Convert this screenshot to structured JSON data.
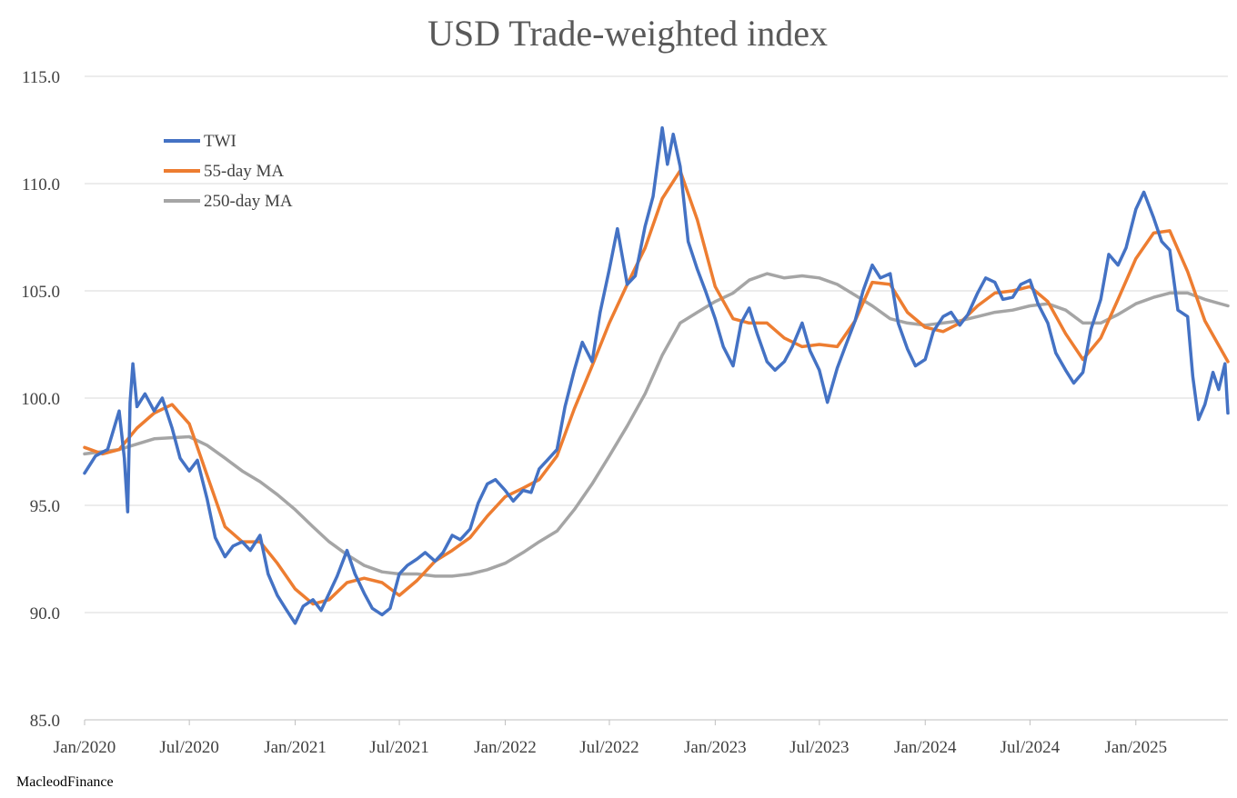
{
  "source_label": "MacleodFinance",
  "chart_data": {
    "type": "line",
    "title": "USD Trade-weighted index",
    "xlabel": "",
    "ylabel": "",
    "ylim": [
      85,
      115
    ],
    "y_ticks": [
      "85.0",
      "90.0",
      "95.0",
      "100.0",
      "105.0",
      "110.0",
      "115.0"
    ],
    "y_tick_values": [
      85,
      90,
      95,
      100,
      105,
      110,
      115
    ],
    "xlim": [
      "2020-01-01",
      "2025-06-10"
    ],
    "x_ticks": [
      "Jan/2020",
      "Jul/2020",
      "Jan/2021",
      "Jul/2021",
      "Jan/2022",
      "Jul/2022",
      "Jan/2023",
      "Jul/2023",
      "Jan/2024",
      "Jul/2024",
      "Jan/2025"
    ],
    "x_tick_dates": [
      "2020-01-01",
      "2020-07-01",
      "2021-01-01",
      "2021-07-01",
      "2022-01-01",
      "2022-07-01",
      "2023-01-01",
      "2023-07-01",
      "2024-01-01",
      "2024-07-01",
      "2025-01-01"
    ],
    "grid": "horizontal",
    "legend_position": "top-left",
    "series": [
      {
        "name": "TWI",
        "color": "#4472C4",
        "points": [
          [
            "2020-01-01",
            96.5
          ],
          [
            "2020-01-20",
            97.3
          ],
          [
            "2020-02-10",
            97.6
          ],
          [
            "2020-03-01",
            99.4
          ],
          [
            "2020-03-10",
            97.2
          ],
          [
            "2020-03-16",
            94.7
          ],
          [
            "2020-03-20",
            99.8
          ],
          [
            "2020-03-25",
            101.6
          ],
          [
            "2020-04-01",
            99.6
          ],
          [
            "2020-04-15",
            100.2
          ],
          [
            "2020-05-01",
            99.4
          ],
          [
            "2020-05-15",
            100.0
          ],
          [
            "2020-06-01",
            98.6
          ],
          [
            "2020-06-15",
            97.2
          ],
          [
            "2020-07-01",
            96.6
          ],
          [
            "2020-07-15",
            97.1
          ],
          [
            "2020-08-01",
            95.3
          ],
          [
            "2020-08-15",
            93.5
          ],
          [
            "2020-09-01",
            92.6
          ],
          [
            "2020-09-15",
            93.1
          ],
          [
            "2020-10-01",
            93.3
          ],
          [
            "2020-10-15",
            92.9
          ],
          [
            "2020-11-01",
            93.6
          ],
          [
            "2020-11-15",
            91.8
          ],
          [
            "2020-12-01",
            90.8
          ],
          [
            "2020-12-15",
            90.2
          ],
          [
            "2021-01-01",
            89.5
          ],
          [
            "2021-01-15",
            90.3
          ],
          [
            "2021-02-01",
            90.6
          ],
          [
            "2021-02-15",
            90.1
          ],
          [
            "2021-03-01",
            90.9
          ],
          [
            "2021-03-15",
            91.7
          ],
          [
            "2021-04-01",
            92.9
          ],
          [
            "2021-04-15",
            91.8
          ],
          [
            "2021-05-01",
            90.9
          ],
          [
            "2021-05-15",
            90.2
          ],
          [
            "2021-06-01",
            89.9
          ],
          [
            "2021-06-15",
            90.2
          ],
          [
            "2021-07-01",
            91.8
          ],
          [
            "2021-07-15",
            92.2
          ],
          [
            "2021-08-01",
            92.5
          ],
          [
            "2021-08-15",
            92.8
          ],
          [
            "2021-09-01",
            92.4
          ],
          [
            "2021-09-15",
            92.8
          ],
          [
            "2021-10-01",
            93.6
          ],
          [
            "2021-10-15",
            93.4
          ],
          [
            "2021-11-01",
            93.9
          ],
          [
            "2021-11-15",
            95.1
          ],
          [
            "2021-12-01",
            96.0
          ],
          [
            "2021-12-15",
            96.2
          ],
          [
            "2022-01-01",
            95.7
          ],
          [
            "2022-01-15",
            95.2
          ],
          [
            "2022-02-01",
            95.7
          ],
          [
            "2022-02-15",
            95.6
          ],
          [
            "2022-03-01",
            96.7
          ],
          [
            "2022-03-15",
            97.1
          ],
          [
            "2022-04-01",
            97.6
          ],
          [
            "2022-04-15",
            99.6
          ],
          [
            "2022-05-01",
            101.3
          ],
          [
            "2022-05-15",
            102.6
          ],
          [
            "2022-06-01",
            101.7
          ],
          [
            "2022-06-15",
            104.0
          ],
          [
            "2022-07-01",
            106.0
          ],
          [
            "2022-07-15",
            107.9
          ],
          [
            "2022-08-01",
            105.3
          ],
          [
            "2022-08-15",
            105.7
          ],
          [
            "2022-09-01",
            108.0
          ],
          [
            "2022-09-15",
            109.4
          ],
          [
            "2022-10-01",
            112.6
          ],
          [
            "2022-10-10",
            110.9
          ],
          [
            "2022-10-20",
            112.3
          ],
          [
            "2022-11-01",
            110.8
          ],
          [
            "2022-11-15",
            107.3
          ],
          [
            "2022-12-01",
            106.0
          ],
          [
            "2022-12-15",
            105.0
          ],
          [
            "2023-01-01",
            103.7
          ],
          [
            "2023-01-15",
            102.4
          ],
          [
            "2023-02-01",
            101.5
          ],
          [
            "2023-02-15",
            103.5
          ],
          [
            "2023-03-01",
            104.2
          ],
          [
            "2023-03-15",
            103.0
          ],
          [
            "2023-04-01",
            101.7
          ],
          [
            "2023-04-15",
            101.3
          ],
          [
            "2023-05-01",
            101.7
          ],
          [
            "2023-05-15",
            102.4
          ],
          [
            "2023-06-01",
            103.5
          ],
          [
            "2023-06-15",
            102.2
          ],
          [
            "2023-07-01",
            101.3
          ],
          [
            "2023-07-15",
            99.8
          ],
          [
            "2023-08-01",
            101.4
          ],
          [
            "2023-08-15",
            102.4
          ],
          [
            "2023-09-01",
            103.6
          ],
          [
            "2023-09-15",
            105.0
          ],
          [
            "2023-10-01",
            106.2
          ],
          [
            "2023-10-15",
            105.6
          ],
          [
            "2023-11-01",
            105.8
          ],
          [
            "2023-11-15",
            103.5
          ],
          [
            "2023-12-01",
            102.3
          ],
          [
            "2023-12-15",
            101.5
          ],
          [
            "2024-01-01",
            101.8
          ],
          [
            "2024-01-15",
            103.1
          ],
          [
            "2024-02-01",
            103.8
          ],
          [
            "2024-02-15",
            104.0
          ],
          [
            "2024-03-01",
            103.4
          ],
          [
            "2024-03-15",
            103.9
          ],
          [
            "2024-04-01",
            104.9
          ],
          [
            "2024-04-15",
            105.6
          ],
          [
            "2024-05-01",
            105.4
          ],
          [
            "2024-05-15",
            104.6
          ],
          [
            "2024-06-01",
            104.7
          ],
          [
            "2024-06-15",
            105.3
          ],
          [
            "2024-07-01",
            105.5
          ],
          [
            "2024-07-15",
            104.4
          ],
          [
            "2024-08-01",
            103.5
          ],
          [
            "2024-08-15",
            102.1
          ],
          [
            "2024-09-01",
            101.3
          ],
          [
            "2024-09-15",
            100.7
          ],
          [
            "2024-10-01",
            101.2
          ],
          [
            "2024-10-15",
            103.2
          ],
          [
            "2024-11-01",
            104.6
          ],
          [
            "2024-11-15",
            106.7
          ],
          [
            "2024-12-01",
            106.2
          ],
          [
            "2024-12-15",
            107.0
          ],
          [
            "2025-01-01",
            108.8
          ],
          [
            "2025-01-15",
            109.6
          ],
          [
            "2025-02-01",
            108.4
          ],
          [
            "2025-02-15",
            107.3
          ],
          [
            "2025-03-01",
            106.9
          ],
          [
            "2025-03-15",
            104.1
          ],
          [
            "2025-04-01",
            103.8
          ],
          [
            "2025-04-10",
            101.0
          ],
          [
            "2025-04-20",
            99.0
          ],
          [
            "2025-05-01",
            99.7
          ],
          [
            "2025-05-15",
            101.2
          ],
          [
            "2025-05-25",
            100.4
          ],
          [
            "2025-06-05",
            101.6
          ],
          [
            "2025-06-10",
            99.3
          ]
        ]
      },
      {
        "name": "55-day MA",
        "color": "#ED7D31",
        "points": [
          [
            "2020-01-01",
            97.7
          ],
          [
            "2020-02-01",
            97.4
          ],
          [
            "2020-03-01",
            97.6
          ],
          [
            "2020-04-01",
            98.6
          ],
          [
            "2020-05-01",
            99.3
          ],
          [
            "2020-06-01",
            99.7
          ],
          [
            "2020-07-01",
            98.8
          ],
          [
            "2020-08-01",
            96.4
          ],
          [
            "2020-09-01",
            94.0
          ],
          [
            "2020-10-01",
            93.3
          ],
          [
            "2020-11-01",
            93.3
          ],
          [
            "2020-12-01",
            92.3
          ],
          [
            "2021-01-01",
            91.1
          ],
          [
            "2021-02-01",
            90.4
          ],
          [
            "2021-03-01",
            90.6
          ],
          [
            "2021-04-01",
            91.4
          ],
          [
            "2021-05-01",
            91.6
          ],
          [
            "2021-06-01",
            91.4
          ],
          [
            "2021-07-01",
            90.8
          ],
          [
            "2021-08-01",
            91.5
          ],
          [
            "2021-09-01",
            92.4
          ],
          [
            "2021-10-01",
            92.9
          ],
          [
            "2021-11-01",
            93.5
          ],
          [
            "2021-12-01",
            94.5
          ],
          [
            "2022-01-01",
            95.4
          ],
          [
            "2022-02-01",
            95.8
          ],
          [
            "2022-03-01",
            96.2
          ],
          [
            "2022-04-01",
            97.3
          ],
          [
            "2022-05-01",
            99.5
          ],
          [
            "2022-06-01",
            101.5
          ],
          [
            "2022-07-01",
            103.5
          ],
          [
            "2022-08-01",
            105.3
          ],
          [
            "2022-09-01",
            107.0
          ],
          [
            "2022-10-01",
            109.3
          ],
          [
            "2022-11-01",
            110.6
          ],
          [
            "2022-12-01",
            108.3
          ],
          [
            "2023-01-01",
            105.2
          ],
          [
            "2023-02-01",
            103.7
          ],
          [
            "2023-03-01",
            103.5
          ],
          [
            "2023-04-01",
            103.5
          ],
          [
            "2023-05-01",
            102.8
          ],
          [
            "2023-06-01",
            102.4
          ],
          [
            "2023-07-01",
            102.5
          ],
          [
            "2023-08-01",
            102.4
          ],
          [
            "2023-09-01",
            103.6
          ],
          [
            "2023-10-01",
            105.4
          ],
          [
            "2023-11-01",
            105.3
          ],
          [
            "2023-12-01",
            104.0
          ],
          [
            "2024-01-01",
            103.3
          ],
          [
            "2024-02-01",
            103.1
          ],
          [
            "2024-03-01",
            103.5
          ],
          [
            "2024-04-01",
            104.3
          ],
          [
            "2024-05-01",
            104.9
          ],
          [
            "2024-06-01",
            105.0
          ],
          [
            "2024-07-01",
            105.2
          ],
          [
            "2024-08-01",
            104.5
          ],
          [
            "2024-09-01",
            103.0
          ],
          [
            "2024-10-01",
            101.8
          ],
          [
            "2024-11-01",
            102.8
          ],
          [
            "2024-12-01",
            104.6
          ],
          [
            "2025-01-01",
            106.5
          ],
          [
            "2025-02-01",
            107.7
          ],
          [
            "2025-03-01",
            107.8
          ],
          [
            "2025-04-01",
            105.9
          ],
          [
            "2025-05-01",
            103.6
          ],
          [
            "2025-06-10",
            101.7
          ]
        ]
      },
      {
        "name": "250-day MA",
        "color": "#A5A5A5",
        "points": [
          [
            "2020-01-01",
            97.4
          ],
          [
            "2020-03-01",
            97.6
          ],
          [
            "2020-05-01",
            98.1
          ],
          [
            "2020-07-01",
            98.2
          ],
          [
            "2020-08-01",
            97.8
          ],
          [
            "2020-09-01",
            97.2
          ],
          [
            "2020-10-01",
            96.6
          ],
          [
            "2020-11-01",
            96.1
          ],
          [
            "2020-12-01",
            95.5
          ],
          [
            "2021-01-01",
            94.8
          ],
          [
            "2021-02-01",
            94.0
          ],
          [
            "2021-03-01",
            93.3
          ],
          [
            "2021-04-01",
            92.7
          ],
          [
            "2021-05-01",
            92.2
          ],
          [
            "2021-06-01",
            91.9
          ],
          [
            "2021-07-01",
            91.8
          ],
          [
            "2021-08-01",
            91.8
          ],
          [
            "2021-09-01",
            91.7
          ],
          [
            "2021-10-01",
            91.7
          ],
          [
            "2021-11-01",
            91.8
          ],
          [
            "2021-12-01",
            92.0
          ],
          [
            "2022-01-01",
            92.3
          ],
          [
            "2022-02-01",
            92.8
          ],
          [
            "2022-03-01",
            93.3
          ],
          [
            "2022-04-01",
            93.8
          ],
          [
            "2022-05-01",
            94.8
          ],
          [
            "2022-06-01",
            96.0
          ],
          [
            "2022-07-01",
            97.3
          ],
          [
            "2022-08-01",
            98.7
          ],
          [
            "2022-09-01",
            100.2
          ],
          [
            "2022-10-01",
            102.0
          ],
          [
            "2022-11-01",
            103.5
          ],
          [
            "2022-12-01",
            104.0
          ],
          [
            "2023-01-01",
            104.5
          ],
          [
            "2023-02-01",
            104.9
          ],
          [
            "2023-03-01",
            105.5
          ],
          [
            "2023-04-01",
            105.8
          ],
          [
            "2023-05-01",
            105.6
          ],
          [
            "2023-06-01",
            105.7
          ],
          [
            "2023-07-01",
            105.6
          ],
          [
            "2023-08-01",
            105.3
          ],
          [
            "2023-09-01",
            104.8
          ],
          [
            "2023-10-01",
            104.3
          ],
          [
            "2023-11-01",
            103.7
          ],
          [
            "2023-12-01",
            103.5
          ],
          [
            "2024-01-01",
            103.4
          ],
          [
            "2024-02-01",
            103.5
          ],
          [
            "2024-03-01",
            103.6
          ],
          [
            "2024-04-01",
            103.8
          ],
          [
            "2024-05-01",
            104.0
          ],
          [
            "2024-06-01",
            104.1
          ],
          [
            "2024-07-01",
            104.3
          ],
          [
            "2024-08-01",
            104.4
          ],
          [
            "2024-09-01",
            104.1
          ],
          [
            "2024-10-01",
            103.5
          ],
          [
            "2024-11-01",
            103.5
          ],
          [
            "2024-12-01",
            103.9
          ],
          [
            "2025-01-01",
            104.4
          ],
          [
            "2025-02-01",
            104.7
          ],
          [
            "2025-03-01",
            104.9
          ],
          [
            "2025-04-01",
            104.9
          ],
          [
            "2025-05-01",
            104.6
          ],
          [
            "2025-06-10",
            104.3
          ]
        ]
      }
    ]
  }
}
